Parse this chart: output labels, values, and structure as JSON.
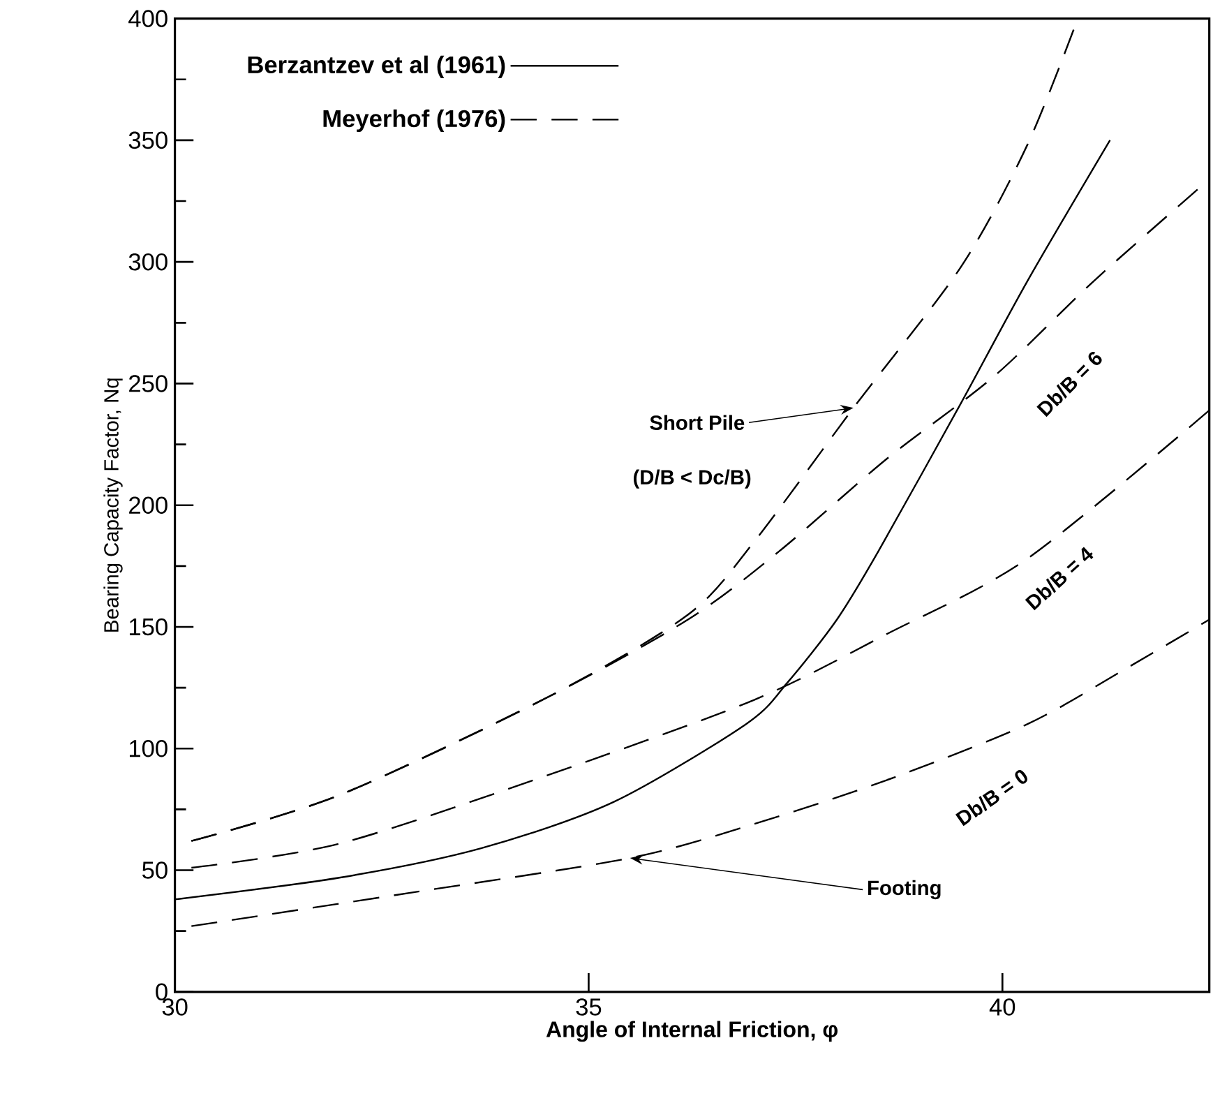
{
  "chart_data": {
    "type": "line",
    "xlabel": "Angle of Internal Friction, φ",
    "ylabel": "Bearing Capacity Factor, Nq",
    "xlim": [
      30,
      42.5
    ],
    "ylim": [
      0,
      400
    ],
    "xticks": [
      30,
      35,
      40
    ],
    "yticks": [
      0,
      50,
      100,
      150,
      200,
      250,
      300,
      350,
      400
    ],
    "legend": "top left",
    "grid": false,
    "marker": "none",
    "series": [
      {
        "name": "Berzantzev et al (1961)",
        "color": "#000000",
        "line_style": "solid",
        "x": [
          30.0,
          32.0,
          33.7,
          35.3,
          36.9,
          37.4,
          38.0,
          38.5,
          39.5,
          40.3,
          41.3
        ],
        "values": [
          38,
          47,
          59,
          78,
          110,
          127,
          153,
          181,
          242,
          292,
          350
        ]
      },
      {
        "name": "Meyerhof (1976)",
        "color": "#000000",
        "line_style": "dashed",
        "x": [
          30.2,
          32.0,
          34.5,
          36.2,
          37.0,
          38.2,
          39.5,
          40.3,
          40.9
        ],
        "values": [
          62,
          81,
          121,
          155,
          185,
          240,
          298,
          348,
          399
        ]
      },
      {
        "color": "#000000",
        "line_style": "dashed",
        "x": [
          30.2,
          32.0,
          34.5,
          36.2,
          37.3,
          38.6,
          39.9,
          41.1,
          42.4
        ],
        "values": [
          62,
          81,
          121,
          153,
          181,
          219,
          253,
          292,
          331
        ]
      },
      {
        "color": "#000000",
        "line_style": "dashed",
        "x": [
          30.2,
          32.0,
          34.5,
          37.0,
          38.6,
          40.3,
          42.5
        ],
        "values": [
          51,
          61,
          89,
          120,
          147,
          178,
          239
        ]
      },
      {
        "color": "#000000",
        "line_style": "dashed",
        "x": [
          30.2,
          32.9,
          35.5,
          37.0,
          38.6,
          40.3,
          41.5,
          42.5
        ],
        "values": [
          27,
          41,
          55,
          69,
          87,
          110,
          133,
          153
        ]
      }
    ],
    "annotations": [
      {
        "text": "Short Pile",
        "x": 38.2,
        "y": 240
      },
      "(D/B < Dc/B)",
      {
        "text": "Footing",
        "x": 35.5,
        "y": 55
      },
      "Db/B = 6",
      "Db/B = 4",
      "Db/B = 0"
    ]
  }
}
